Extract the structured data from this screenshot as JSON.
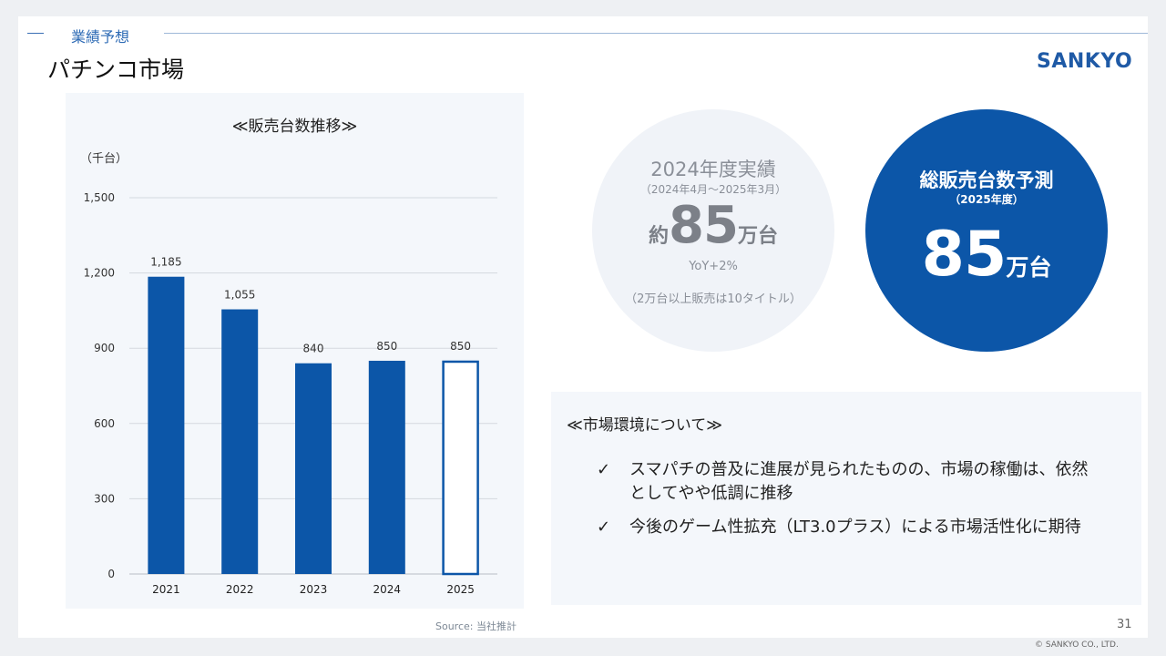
{
  "header": {
    "section_label": "業績予想",
    "page_title": "パチンコ市場",
    "logo_text": "SANKYO"
  },
  "chart_section": {
    "title": "≪販売台数推移≫",
    "unit": "（千台）",
    "source": "Source: 当社推計"
  },
  "chart_data": {
    "type": "bar",
    "categories": [
      "2021",
      "2022",
      "2023",
      "2024",
      "2025"
    ],
    "values": [
      1185,
      1055,
      840,
      850,
      850
    ],
    "value_labels": [
      "1,185",
      "1,055",
      "840",
      "850",
      "850"
    ],
    "forecast_index": 4,
    "yticks": [
      0,
      300,
      600,
      900,
      1200,
      1500
    ],
    "ytick_labels": [
      "0",
      "300",
      "600",
      "900",
      "1,200",
      "1,500"
    ],
    "ylim": [
      0,
      1500
    ],
    "ylabel": "（千台）",
    "grid": true,
    "bar_color": "#0c56a8",
    "forecast_fill": "#ffffff"
  },
  "actual_circle": {
    "title": "2024年度実績",
    "period": "（2024年4月～2025年3月）",
    "prefix": "約",
    "value": "85",
    "unit": "万台",
    "yoy": "YoY+2%",
    "note": "（2万台以上販売は10タイトル）"
  },
  "forecast_circle": {
    "title": "総販売台数予測",
    "period": "（2025年度）",
    "value": "85",
    "unit": "万台"
  },
  "environment": {
    "title": "≪市場環境について≫",
    "check_symbol": "✓",
    "bullets": [
      "スマパチの普及に進展が見られたものの、市場の稼働は、依然としてやや低調に推移",
      "今後のゲーム性拡充（LT3.0プラス）による市場活性化に期待"
    ]
  },
  "footer": {
    "page_number": "31",
    "copyright": "© SANKYO CO., LTD."
  },
  "colors": {
    "brand_blue": "#0c56a8",
    "gray_text": "#8a8f98",
    "panel_bg": "#f4f7fb"
  }
}
